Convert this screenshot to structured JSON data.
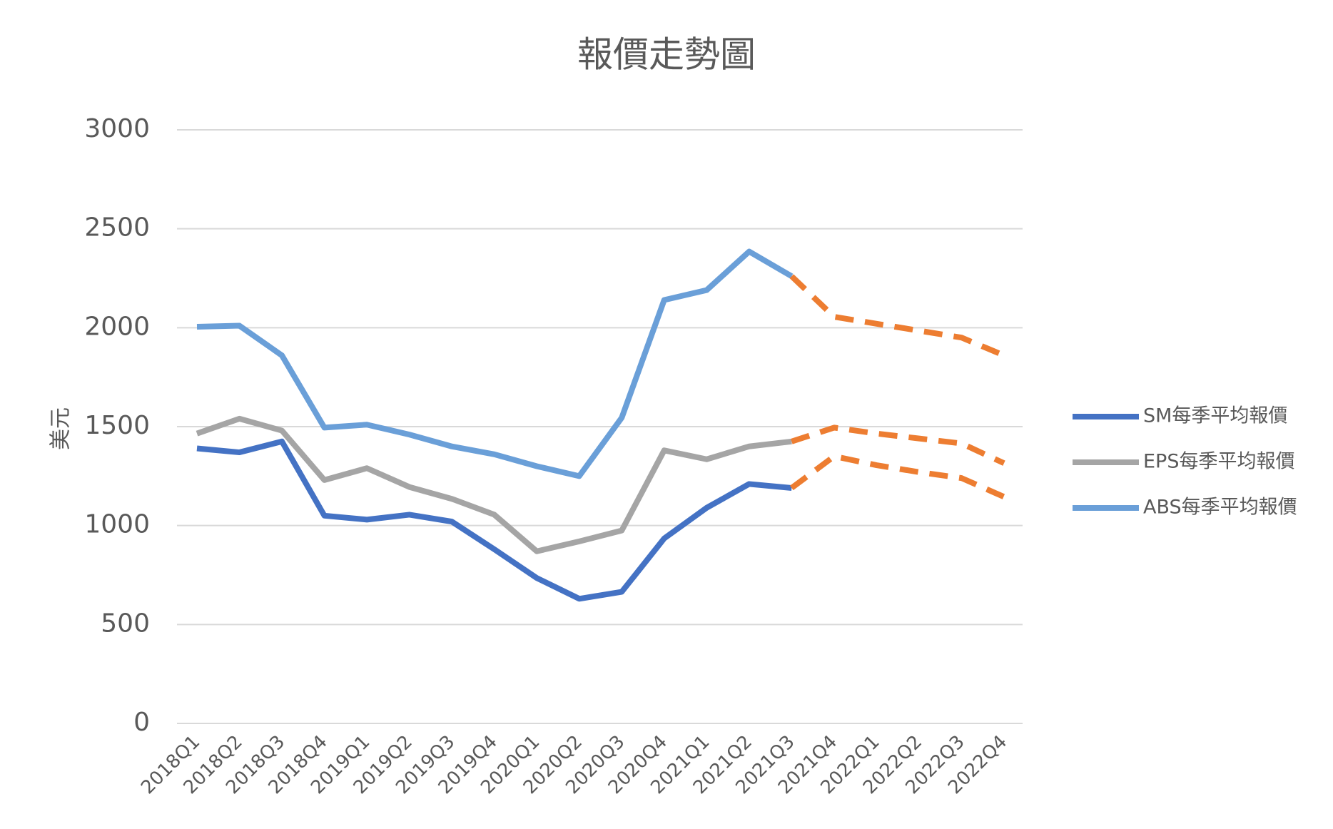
{
  "chart_data": {
    "type": "line",
    "title": "報價走勢圖",
    "y_label": "美元",
    "categories": [
      "2018Q1",
      "2018Q2",
      "2018Q3",
      "2018Q4",
      "2019Q1",
      "2019Q2",
      "2019Q3",
      "2019Q4",
      "2020Q1",
      "2020Q2",
      "2020Q3",
      "2020Q4",
      "2021Q1",
      "2021Q2",
      "2021Q3",
      "2021Q4",
      "2022Q1",
      "2022Q2",
      "2022Q3",
      "2022Q4"
    ],
    "series": [
      {
        "name": "SM每季平均報價",
        "color": "#4472c4",
        "values": [
          1390,
          1370,
          1425,
          1050,
          1030,
          1055,
          1020,
          880,
          735,
          630,
          665,
          935,
          1090,
          1210,
          1190,
          1350,
          1305,
          1270,
          1240,
          1145
        ]
      },
      {
        "name": "EPS每季平均報價",
        "color": "#a5a5a5",
        "values": [
          1465,
          1540,
          1480,
          1230,
          1290,
          1195,
          1135,
          1055,
          870,
          920,
          975,
          1380,
          1335,
          1400,
          1425,
          1495,
          1465,
          1440,
          1415,
          1315
        ]
      },
      {
        "name": "ABS每季平均報價",
        "color": "#6a9fd8",
        "values": [
          2005,
          2010,
          1860,
          1495,
          1510,
          1460,
          1400,
          1360,
          1300,
          1250,
          1545,
          2140,
          2190,
          2385,
          2260,
          2055,
          2020,
          1985,
          1950,
          1860
        ]
      }
    ],
    "forecast_from": "2021Q3",
    "forecast_color": "#ed7d31",
    "ylim": [
      0,
      3000
    ],
    "yticks": [
      0,
      500,
      1000,
      1500,
      2000,
      2500,
      3000
    ],
    "grid": true,
    "legend": "right"
  }
}
